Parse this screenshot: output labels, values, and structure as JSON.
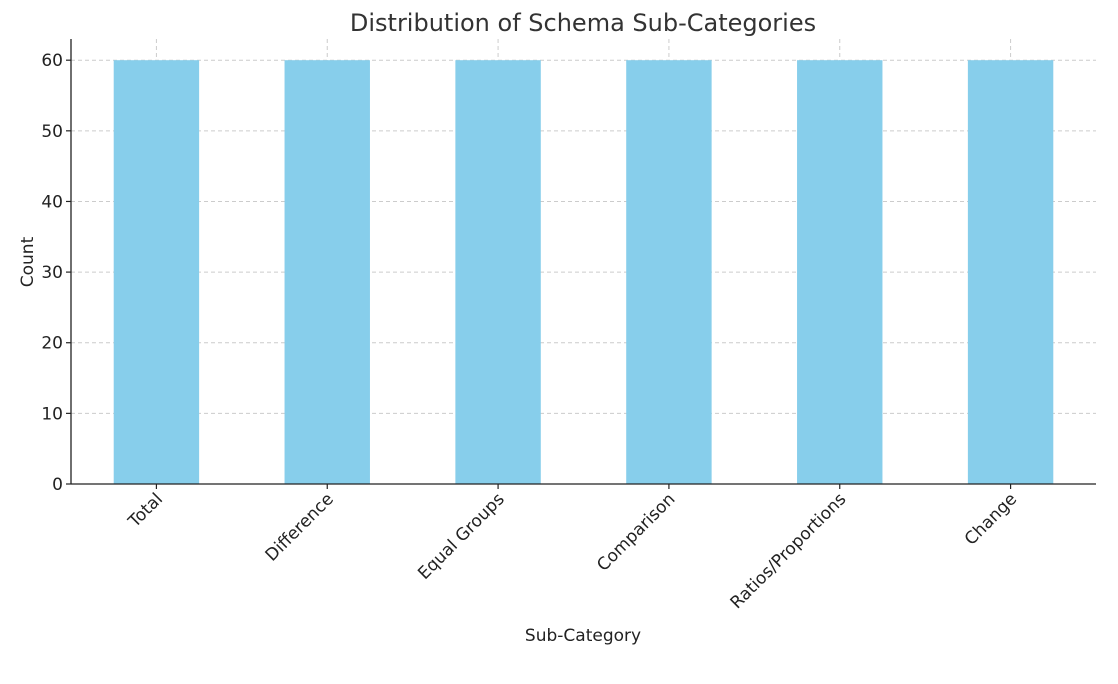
{
  "chart_data": {
    "type": "bar",
    "title": "Distribution of Schema Sub-Categories",
    "xlabel": "Sub-Category",
    "ylabel": "Count",
    "categories": [
      "Total",
      "Difference",
      "Equal Groups",
      "Comparison",
      "Ratios/Proportions",
      "Change"
    ],
    "values": [
      60,
      60,
      60,
      60,
      60,
      60
    ],
    "ylim": [
      0,
      63
    ],
    "yticks": [
      0,
      10,
      20,
      30,
      40,
      50,
      60
    ],
    "grid": true,
    "bar_color": "#87CEEB",
    "legend": "none"
  }
}
